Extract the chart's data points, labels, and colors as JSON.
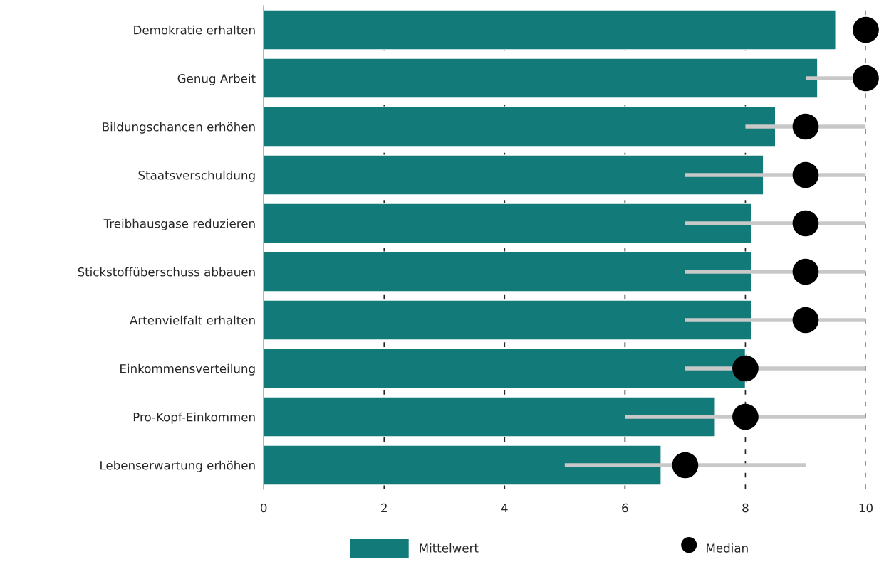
{
  "chart_data": {
    "type": "bar",
    "orientation": "horizontal",
    "categories": [
      "Demokratie erhalten",
      "Genug Arbeit",
      "Bildungschancen erhöhen",
      "Staatsverschuldung",
      "Treibhausgase reduzieren",
      "Stickstoffüberschuss abbauen",
      "Artenvielfalt erhalten",
      "Einkommensverteilung",
      "Pro-Kopf-Einkommen",
      "Lebenserwartung erhöhen"
    ],
    "series": [
      {
        "name": "Mittelwert",
        "color": "#137a7a",
        "values": [
          9.5,
          9.2,
          8.5,
          8.3,
          8.1,
          8.1,
          8.1,
          8.0,
          7.5,
          6.6
        ]
      },
      {
        "name": "Median",
        "type": "scatter",
        "color": "#000000",
        "marker": "circle",
        "x": [
          "Demokratie erhalten",
          "Genug Arbeit",
          "Bildungschancen erhöhen",
          "Staatsverschuldung",
          "Treibhausgase reduzieren",
          "Stickstoffüberschuss abbauen",
          "Artenvielfalt erhalten",
          "Einkommensverteilung",
          "Pro-Kopf-Einkommen",
          "Lebenserwartung erhöhen"
        ],
        "values": [
          10,
          10,
          9,
          9,
          9,
          9,
          9,
          8,
          8,
          7
        ],
        "errors": [
          null,
          [
            9,
            10
          ],
          [
            8,
            10
          ],
          [
            7,
            10
          ],
          [
            7,
            10
          ],
          [
            7,
            10
          ],
          [
            7,
            10
          ],
          [
            7,
            10
          ],
          [
            6,
            10
          ],
          [
            5,
            9
          ]
        ]
      }
    ],
    "xlim": [
      0,
      10
    ],
    "xticks": [
      0,
      2,
      4,
      6,
      8,
      10
    ],
    "grid": "x",
    "legend": "bottom"
  }
}
